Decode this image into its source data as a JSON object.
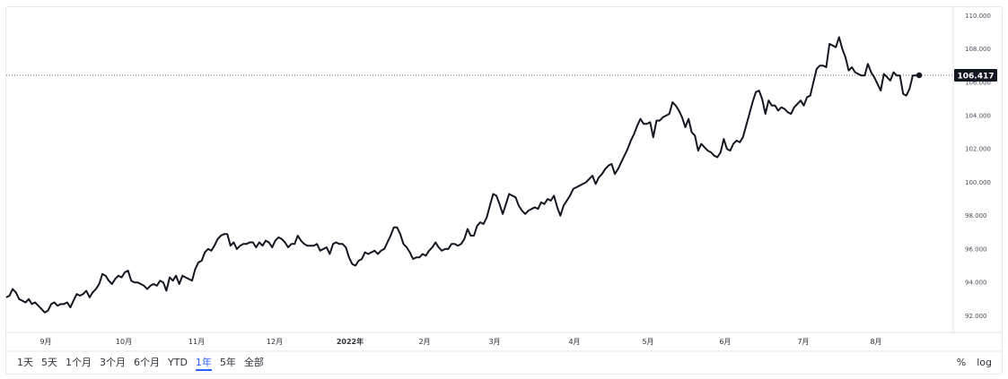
{
  "chart_data": {
    "type": "line",
    "x_labels": [
      "9月",
      "10月",
      "11月",
      "12月",
      "2022年",
      "2月",
      "3月",
      "4月",
      "5月",
      "6月",
      "7月",
      "8月"
    ],
    "y_ticks": [
      "92.000",
      "94.000",
      "96.000",
      "98.000",
      "100.000",
      "102.000",
      "104.000",
      "106.000",
      "108.000",
      "110.000"
    ],
    "ylim": [
      91.0,
      110.5
    ],
    "last_value": "106.417",
    "line_color": "#131722",
    "label_bg": "#131722",
    "values": [
      93.1,
      93.2,
      93.6,
      93.4,
      93.0,
      92.9,
      92.8,
      93.0,
      92.7,
      92.8,
      92.6,
      92.4,
      92.2,
      92.3,
      92.7,
      92.8,
      92.6,
      92.7,
      92.7,
      92.8,
      92.5,
      92.9,
      93.3,
      93.2,
      93.3,
      93.5,
      93.1,
      93.4,
      93.6,
      93.9,
      94.5,
      94.4,
      94.1,
      93.9,
      94.2,
      94.4,
      94.3,
      94.6,
      94.7,
      94.1,
      94.0,
      94.0,
      93.9,
      93.8,
      93.6,
      93.8,
      93.9,
      93.8,
      94.1,
      94.0,
      93.5,
      94.3,
      94.1,
      94.4,
      93.9,
      94.4,
      94.3,
      94.2,
      94.1,
      94.8,
      95.2,
      95.3,
      95.8,
      96.0,
      95.9,
      96.2,
      96.6,
      96.8,
      96.9,
      96.9,
      96.2,
      96.4,
      96.0,
      96.2,
      96.3,
      96.3,
      96.4,
      96.4,
      96.1,
      96.4,
      96.2,
      96.5,
      96.4,
      96.1,
      96.5,
      96.7,
      96.6,
      96.4,
      96.1,
      96.3,
      96.3,
      96.8,
      96.5,
      96.3,
      96.2,
      96.2,
      96.2,
      96.3,
      95.9,
      96.0,
      96.1,
      95.7,
      96.3,
      96.4,
      96.3,
      96.3,
      96.1,
      95.5,
      95.1,
      95.0,
      95.3,
      95.4,
      95.8,
      95.7,
      95.8,
      95.9,
      95.7,
      95.9,
      96.0,
      96.4,
      96.8,
      97.3,
      97.3,
      96.9,
      96.3,
      96.1,
      95.8,
      95.4,
      95.5,
      95.5,
      95.7,
      95.6,
      95.9,
      96.1,
      96.4,
      96.1,
      95.9,
      96.0,
      96.0,
      96.3,
      96.3,
      96.2,
      96.3,
      96.6,
      97.2,
      96.8,
      96.8,
      97.4,
      97.6,
      97.5,
      97.9,
      98.6,
      99.3,
      99.2,
      98.7,
      98.1,
      98.7,
      99.3,
      99.2,
      99.1,
      98.6,
      98.3,
      98.1,
      98.3,
      98.4,
      98.5,
      98.4,
      98.8,
      98.7,
      99.0,
      98.9,
      99.2,
      98.5,
      98.0,
      98.6,
      98.9,
      99.2,
      99.6,
      99.7,
      99.8,
      99.9,
      100.0,
      100.2,
      100.4,
      99.9,
      100.3,
      100.5,
      100.8,
      101.0,
      101.1,
      100.5,
      100.8,
      101.2,
      101.6,
      102.0,
      102.5,
      102.9,
      103.4,
      103.8,
      103.5,
      103.5,
      103.6,
      102.7,
      103.7,
      103.7,
      103.9,
      104.0,
      104.1,
      104.8,
      104.6,
      104.3,
      103.9,
      103.3,
      103.8,
      103.0,
      102.8,
      101.9,
      102.3,
      102.1,
      101.9,
      101.8,
      101.6,
      101.5,
      101.8,
      102.6,
      102.0,
      101.9,
      102.3,
      102.5,
      102.4,
      102.7,
      103.4,
      104.1,
      104.8,
      105.4,
      105.5,
      105.0,
      104.1,
      104.9,
      104.6,
      104.6,
      104.3,
      104.5,
      104.4,
      104.2,
      104.1,
      104.5,
      104.7,
      104.9,
      104.6,
      105.1,
      105.2,
      106.0,
      106.8,
      107.0,
      107.0,
      106.9,
      108.3,
      108.2,
      108.1,
      108.7,
      108.0,
      107.5,
      106.7,
      106.9,
      106.6,
      106.5,
      106.4,
      106.4,
      107.1,
      106.6,
      106.3,
      105.9,
      105.5,
      106.5,
      106.3,
      106.1,
      106.6,
      106.4,
      106.4,
      105.3,
      105.2,
      105.6,
      106.4,
      106.4,
      106.42
    ]
  },
  "range_buttons": [
    "1天",
    "5天",
    "1个月",
    "3个月",
    "6个月",
    "YTD",
    "1年",
    "5年",
    "全部"
  ],
  "active_range": "1年",
  "scale_buttons": [
    "%",
    "log"
  ]
}
